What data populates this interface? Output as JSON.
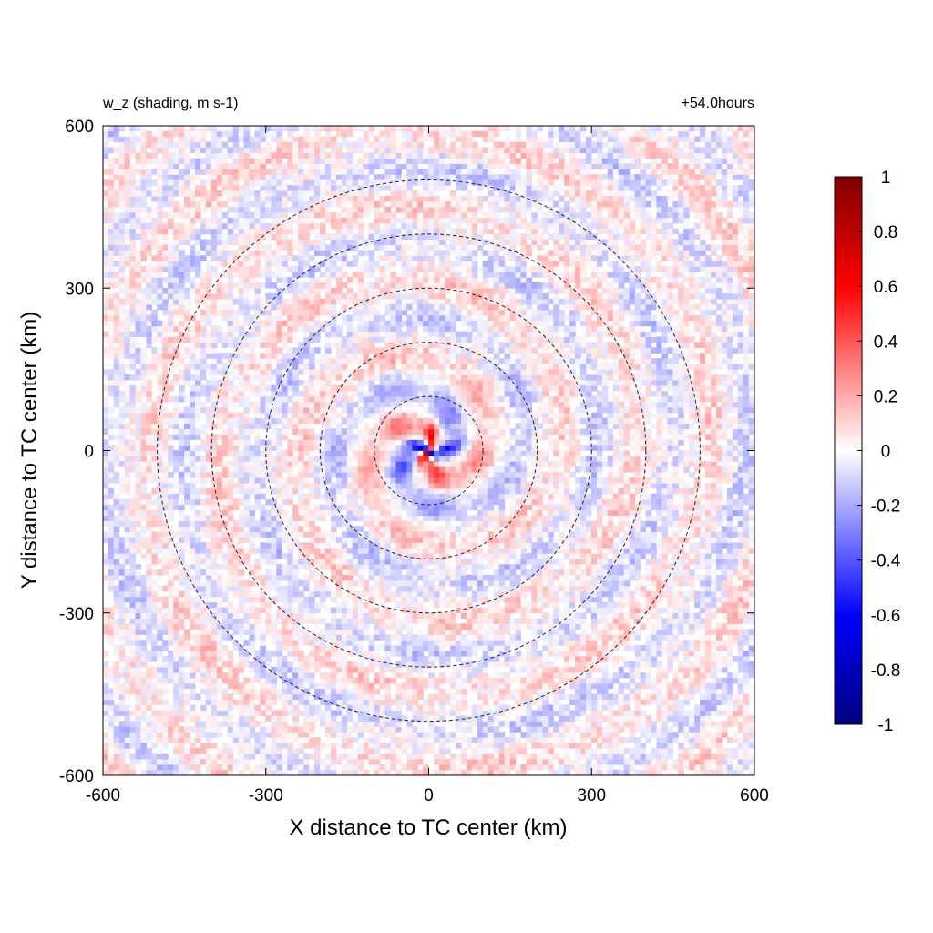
{
  "chart_data": {
    "type": "heatmap",
    "title_left": "w_z (shading, m s-1)",
    "title_right": "+54.0hours",
    "xlabel": "X distance to TC center (km)",
    "ylabel": "Y distance to TC center (km)",
    "xlim": [
      -600,
      600
    ],
    "ylim": [
      -600,
      600
    ],
    "xticks": [
      -600,
      -300,
      0,
      300,
      600
    ],
    "yticks": [
      -600,
      -300,
      0,
      300,
      600
    ],
    "xtick_labels": [
      "-600",
      "-300",
      "0",
      "300",
      "600"
    ],
    "ytick_labels": [
      "-600",
      "-300",
      "0",
      "300",
      "600"
    ],
    "contours": {
      "style": "dashed",
      "color": "#333333",
      "radii_km": [
        100,
        200,
        300,
        400,
        500
      ]
    },
    "colorbar": {
      "min": -1,
      "max": 1,
      "ticks": [
        1,
        0.8,
        0.6,
        0.4,
        0.2,
        0,
        -0.2,
        -0.4,
        -0.6,
        -0.8,
        -1
      ],
      "tick_labels": [
        "1",
        "0.8",
        "0.6",
        "0.4",
        "0.2",
        "0",
        "-0.2",
        "-0.4",
        "-0.6",
        "-0.8",
        "-1"
      ],
      "colors": [
        "#00007f",
        "#0000ff",
        "#ffffff",
        "#ff0000",
        "#7f0000"
      ]
    },
    "field_description": "spiral banded vertical-velocity perturbations, amplitude up to ~1 near center, weak (~0.1-0.2) elsewhere"
  }
}
